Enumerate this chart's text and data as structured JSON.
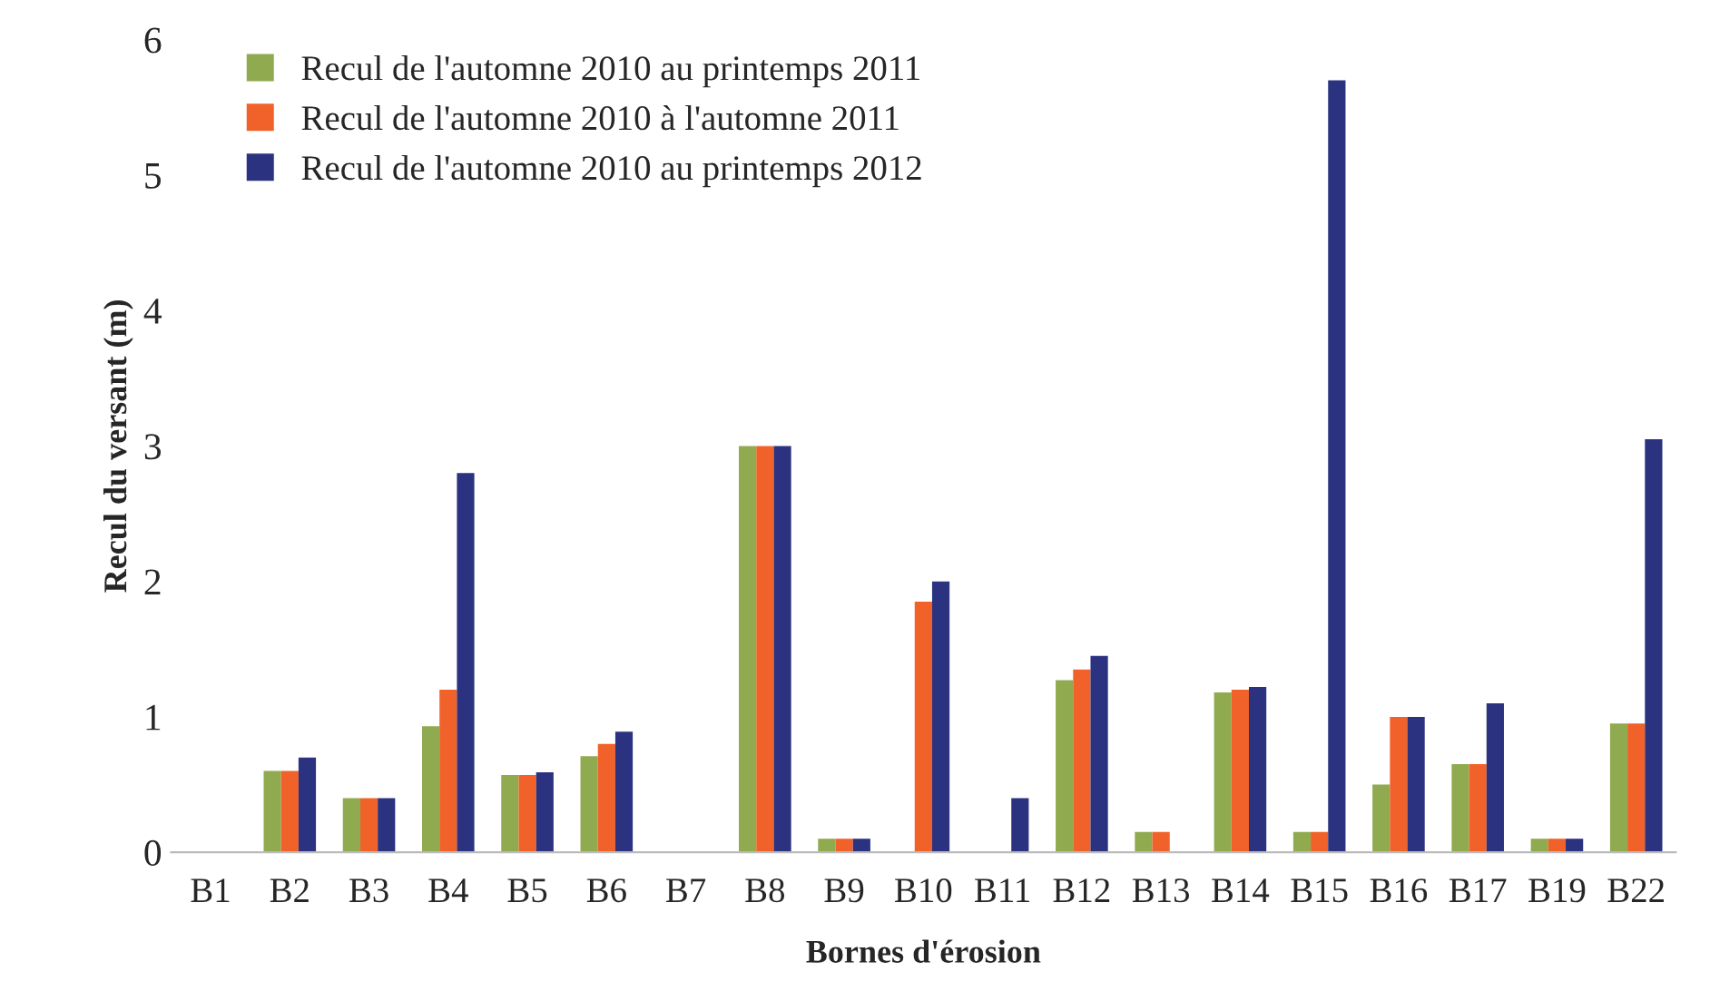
{
  "chart_data": {
    "type": "bar",
    "xlabel": "Bornes d'érosion",
    "ylabel": "Recul du versant (m)",
    "categories": [
      "B1",
      "B2",
      "B3",
      "B4",
      "B5",
      "B6",
      "B7",
      "B8",
      "B9",
      "B10",
      "B11",
      "B12",
      "B13",
      "B14",
      "B15",
      "B16",
      "B17",
      "B19",
      "B22"
    ],
    "series": [
      {
        "name": "Recul de l'automne 2010 au printemps 2011",
        "color": "#8faa4f",
        "values": [
          0,
          0.6,
          0.4,
          0.93,
          0.57,
          0.71,
          0,
          3.0,
          0.1,
          0,
          0,
          1.27,
          0.15,
          1.18,
          0.15,
          0.5,
          0.65,
          0.1,
          0.95
        ]
      },
      {
        "name": "Recul de l'automne 2010 à l'automne 2011",
        "color": "#f0622a",
        "values": [
          0,
          0.6,
          0.4,
          1.2,
          0.57,
          0.8,
          0,
          3.0,
          0.1,
          1.85,
          0,
          1.35,
          0.15,
          1.2,
          0.15,
          1.0,
          0.65,
          0.1,
          0.95
        ]
      },
      {
        "name": "Recul de l'automne 2010 au printemps 2012",
        "color": "#2b327f",
        "values": [
          0,
          0.7,
          0.4,
          2.8,
          0.59,
          0.89,
          0,
          3.0,
          0.1,
          2.0,
          0.4,
          1.45,
          0,
          1.22,
          5.7,
          1.0,
          1.1,
          0.1,
          3.05
        ]
      }
    ],
    "ylim": [
      0,
      6
    ],
    "yticks": [
      0,
      1,
      2,
      3,
      4,
      5,
      6
    ],
    "grid": false,
    "legend": "top left"
  }
}
